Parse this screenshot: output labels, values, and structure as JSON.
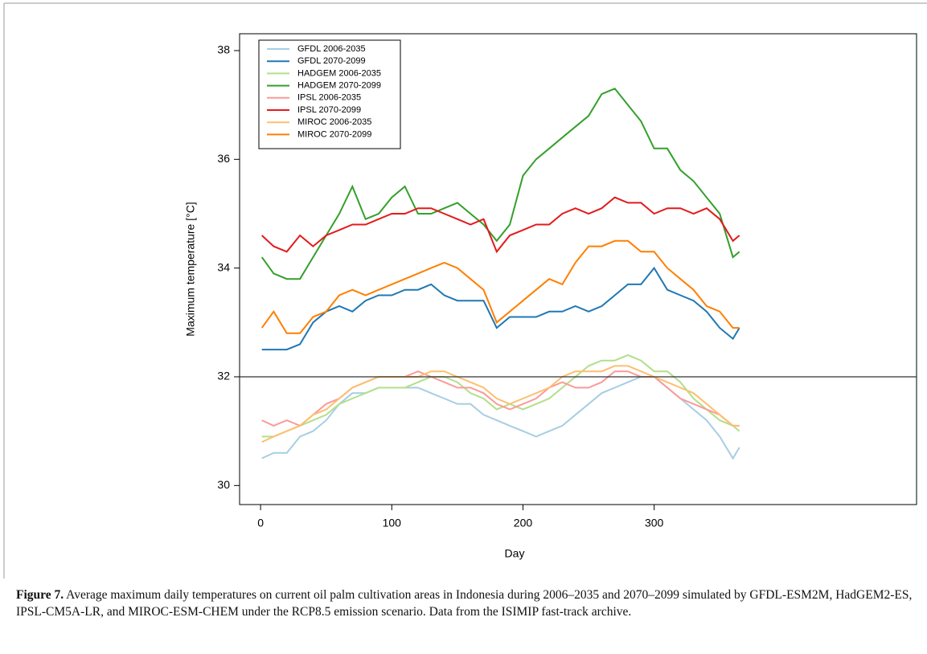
{
  "chart_data": {
    "type": "line",
    "y_label": "Maximum temperature [°C]",
    "x_label": "Day",
    "x": [
      1,
      10,
      20,
      30,
      40,
      50,
      60,
      70,
      80,
      90,
      100,
      110,
      120,
      130,
      140,
      150,
      160,
      170,
      180,
      190,
      200,
      210,
      220,
      230,
      240,
      250,
      260,
      270,
      280,
      290,
      300,
      310,
      320,
      330,
      340,
      350,
      360,
      365
    ],
    "series": [
      {
        "name": "GFDL 2006-2035",
        "color": "#a6cee3",
        "values": [
          30.5,
          30.6,
          30.6,
          30.9,
          31.0,
          31.2,
          31.5,
          31.7,
          31.7,
          31.8,
          31.8,
          31.8,
          31.8,
          31.7,
          31.6,
          31.5,
          31.5,
          31.3,
          31.2,
          31.1,
          31.0,
          30.9,
          31.0,
          31.1,
          31.3,
          31.5,
          31.7,
          31.8,
          31.9,
          32.0,
          32.0,
          31.8,
          31.6,
          31.4,
          31.2,
          30.9,
          30.5,
          30.7
        ]
      },
      {
        "name": "GFDL 2070-2099",
        "color": "#1f78b4",
        "values": [
          32.5,
          32.5,
          32.5,
          32.6,
          33.0,
          33.2,
          33.3,
          33.2,
          33.4,
          33.5,
          33.5,
          33.6,
          33.6,
          33.7,
          33.5,
          33.4,
          33.4,
          33.4,
          32.9,
          33.1,
          33.1,
          33.1,
          33.2,
          33.2,
          33.3,
          33.2,
          33.3,
          33.5,
          33.7,
          33.7,
          34.0,
          33.6,
          33.5,
          33.4,
          33.2,
          32.9,
          32.7,
          32.9
        ]
      },
      {
        "name": "HADGEM 2006-2035",
        "color": "#b2df8a",
        "values": [
          30.9,
          30.9,
          31.0,
          31.1,
          31.2,
          31.3,
          31.5,
          31.6,
          31.7,
          31.8,
          31.8,
          31.8,
          31.9,
          32.0,
          32.0,
          31.9,
          31.7,
          31.6,
          31.4,
          31.5,
          31.4,
          31.5,
          31.6,
          31.8,
          32.0,
          32.2,
          32.3,
          32.3,
          32.4,
          32.3,
          32.1,
          32.1,
          31.9,
          31.6,
          31.4,
          31.2,
          31.1,
          31.0
        ]
      },
      {
        "name": "HADGEM 2070-2099",
        "color": "#33a02c",
        "values": [
          34.2,
          33.9,
          33.8,
          33.8,
          34.2,
          34.6,
          35.0,
          35.5,
          34.9,
          35.0,
          35.3,
          35.5,
          35.0,
          35.0,
          35.1,
          35.2,
          35.0,
          34.8,
          34.5,
          34.8,
          35.7,
          36.0,
          36.2,
          36.4,
          36.6,
          36.8,
          37.2,
          37.3,
          37.0,
          36.7,
          36.2,
          36.2,
          35.8,
          35.6,
          35.3,
          35.0,
          34.2,
          34.3
        ]
      },
      {
        "name": "IPSL 2006-2035",
        "color": "#fb9a99",
        "values": [
          31.2,
          31.1,
          31.2,
          31.1,
          31.3,
          31.5,
          31.6,
          31.8,
          31.9,
          32.0,
          32.0,
          32.0,
          32.1,
          32.0,
          31.9,
          31.8,
          31.8,
          31.7,
          31.5,
          31.4,
          31.5,
          31.6,
          31.8,
          31.9,
          31.8,
          31.8,
          31.9,
          32.1,
          32.1,
          32.0,
          32.0,
          31.8,
          31.6,
          31.5,
          31.4,
          31.3,
          31.1,
          31.1
        ]
      },
      {
        "name": "IPSL 2070-2099",
        "color": "#e31a1c",
        "values": [
          34.6,
          34.4,
          34.3,
          34.6,
          34.4,
          34.6,
          34.7,
          34.8,
          34.8,
          34.9,
          35.0,
          35.0,
          35.1,
          35.1,
          35.0,
          34.9,
          34.8,
          34.9,
          34.3,
          34.6,
          34.7,
          34.8,
          34.8,
          35.0,
          35.1,
          35.0,
          35.1,
          35.3,
          35.2,
          35.2,
          35.0,
          35.1,
          35.1,
          35.0,
          35.1,
          34.9,
          34.5,
          34.6
        ]
      },
      {
        "name": "MIROC 2006-2035",
        "color": "#fdbf6f",
        "values": [
          30.8,
          30.9,
          31.0,
          31.1,
          31.3,
          31.4,
          31.6,
          31.8,
          31.9,
          32.0,
          32.0,
          32.0,
          32.0,
          32.1,
          32.1,
          32.0,
          31.9,
          31.8,
          31.6,
          31.5,
          31.6,
          31.7,
          31.8,
          32.0,
          32.1,
          32.1,
          32.1,
          32.2,
          32.2,
          32.1,
          32.0,
          31.9,
          31.8,
          31.7,
          31.5,
          31.3,
          31.1,
          31.1
        ]
      },
      {
        "name": "MIROC 2070-2099",
        "color": "#ff7f00",
        "values": [
          32.9,
          33.2,
          32.8,
          32.8,
          33.1,
          33.2,
          33.5,
          33.6,
          33.5,
          33.6,
          33.7,
          33.8,
          33.9,
          34.0,
          34.1,
          34.0,
          33.8,
          33.6,
          33.0,
          33.2,
          33.4,
          33.6,
          33.8,
          33.7,
          34.1,
          34.4,
          34.4,
          34.5,
          34.5,
          34.3,
          34.3,
          34.0,
          33.8,
          33.6,
          33.3,
          33.2,
          32.9,
          32.9
        ]
      }
    ],
    "hline": 32,
    "xlim": [
      -16,
      500
    ],
    "ylim": [
      29.65,
      38.31
    ],
    "xticks": [
      0,
      100,
      200,
      300
    ],
    "yticks": [
      30,
      32,
      34,
      36,
      38
    ],
    "legend": "top-left"
  },
  "caption": {
    "label": "Figure 7.",
    "text": " Average maximum daily temperatures on current oil palm cultivation areas in Indonesia during 2006–2035 and 2070–2099 simulated by GFDL-ESM2M, HadGEM2-ES, IPSL-CM5A-LR, and MIROC-ESM-CHEM under the RCP8.5 emission scenario. Data from the ISIMIP fast-track archive."
  }
}
